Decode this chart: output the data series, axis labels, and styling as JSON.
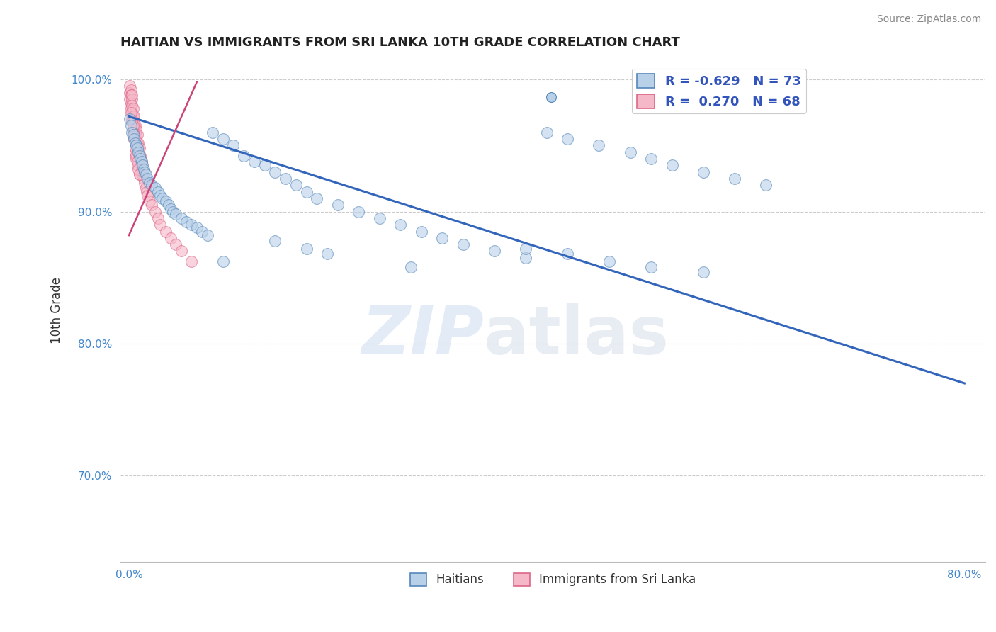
{
  "title": "HAITIAN VS IMMIGRANTS FROM SRI LANKA 10TH GRADE CORRELATION CHART",
  "source": "Source: ZipAtlas.com",
  "ylabel": "10th Grade",
  "watermark_zip": "ZIP",
  "watermark_atlas": "atlas",
  "xlim": [
    -0.008,
    0.82
  ],
  "ylim": [
    0.635,
    1.015
  ],
  "xticks": [
    0.0,
    0.1,
    0.2,
    0.3,
    0.4,
    0.5,
    0.6,
    0.7,
    0.8
  ],
  "yticks": [
    0.7,
    0.8,
    0.9,
    1.0
  ],
  "legend_blue_r": "-0.629",
  "legend_blue_n": "73",
  "legend_pink_r": "0.270",
  "legend_pink_n": "68",
  "legend_label_blue": "Haitians",
  "legend_label_pink": "Immigrants from Sri Lanka",
  "blue_face": "#b8d0e8",
  "blue_edge": "#5588bb",
  "pink_face": "#f5b8c8",
  "pink_edge": "#dd6688",
  "line_blue": "#3366bb",
  "line_pink": "#cc4477",
  "grid_color": "#cccccc",
  "bg": "#ffffff",
  "title_color": "#222222",
  "tick_color": "#4488cc",
  "blue_scatter_x": [
    0.001,
    0.002,
    0.003,
    0.004,
    0.005,
    0.006,
    0.007,
    0.008,
    0.009,
    0.01,
    0.011,
    0.012,
    0.013,
    0.014,
    0.015,
    0.016,
    0.018,
    0.02,
    0.022,
    0.025,
    0.028,
    0.03,
    0.032,
    0.035,
    0.038,
    0.04,
    0.042,
    0.045,
    0.05,
    0.055,
    0.06,
    0.065,
    0.07,
    0.075,
    0.08,
    0.09,
    0.1,
    0.11,
    0.12,
    0.13,
    0.14,
    0.15,
    0.16,
    0.17,
    0.18,
    0.2,
    0.22,
    0.24,
    0.26,
    0.28,
    0.3,
    0.32,
    0.35,
    0.38,
    0.4,
    0.42,
    0.45,
    0.48,
    0.5,
    0.52,
    0.55,
    0.58,
    0.61,
    0.14,
    0.17,
    0.19,
    0.09,
    0.27,
    0.38,
    0.42,
    0.46,
    0.5,
    0.55
  ],
  "blue_scatter_y": [
    0.97,
    0.965,
    0.96,
    0.958,
    0.955,
    0.952,
    0.95,
    0.948,
    0.945,
    0.942,
    0.94,
    0.938,
    0.935,
    0.932,
    0.93,
    0.928,
    0.925,
    0.922,
    0.92,
    0.918,
    0.915,
    0.912,
    0.91,
    0.908,
    0.905,
    0.902,
    0.9,
    0.898,
    0.895,
    0.892,
    0.89,
    0.888,
    0.885,
    0.882,
    0.96,
    0.955,
    0.95,
    0.942,
    0.938,
    0.935,
    0.93,
    0.925,
    0.92,
    0.915,
    0.91,
    0.905,
    0.9,
    0.895,
    0.89,
    0.885,
    0.88,
    0.875,
    0.87,
    0.865,
    0.96,
    0.955,
    0.95,
    0.945,
    0.94,
    0.935,
    0.93,
    0.925,
    0.92,
    0.878,
    0.872,
    0.868,
    0.862,
    0.858,
    0.872,
    0.868,
    0.862,
    0.858,
    0.854
  ],
  "pink_scatter_x": [
    0.001,
    0.001,
    0.001,
    0.002,
    0.002,
    0.002,
    0.002,
    0.003,
    0.003,
    0.003,
    0.003,
    0.004,
    0.004,
    0.004,
    0.004,
    0.005,
    0.005,
    0.005,
    0.005,
    0.006,
    0.006,
    0.006,
    0.007,
    0.007,
    0.007,
    0.008,
    0.008,
    0.008,
    0.009,
    0.009,
    0.01,
    0.01,
    0.011,
    0.011,
    0.012,
    0.012,
    0.013,
    0.014,
    0.015,
    0.016,
    0.017,
    0.018,
    0.02,
    0.022,
    0.025,
    0.028,
    0.03,
    0.035,
    0.04,
    0.045,
    0.05,
    0.06,
    0.002,
    0.003,
    0.004,
    0.005,
    0.006,
    0.007,
    0.008,
    0.01,
    0.003,
    0.004,
    0.005,
    0.006,
    0.007,
    0.008,
    0.009,
    0.01
  ],
  "pink_scatter_y": [
    0.995,
    0.99,
    0.985,
    0.992,
    0.988,
    0.982,
    0.978,
    0.985,
    0.98,
    0.975,
    0.97,
    0.978,
    0.972,
    0.968,
    0.964,
    0.972,
    0.968,
    0.962,
    0.958,
    0.965,
    0.96,
    0.955,
    0.962,
    0.958,
    0.952,
    0.958,
    0.952,
    0.948,
    0.952,
    0.948,
    0.948,
    0.942,
    0.942,
    0.938,
    0.938,
    0.932,
    0.928,
    0.925,
    0.922,
    0.918,
    0.915,
    0.912,
    0.908,
    0.905,
    0.9,
    0.895,
    0.89,
    0.885,
    0.88,
    0.875,
    0.87,
    0.862,
    0.975,
    0.968,
    0.96,
    0.955,
    0.945,
    0.94,
    0.935,
    0.928,
    0.988,
    0.965,
    0.958,
    0.948,
    0.942,
    0.938,
    0.932,
    0.928
  ],
  "blue_line_x": [
    0.0,
    0.8
  ],
  "blue_line_y": [
    0.972,
    0.77
  ],
  "pink_line_x": [
    0.0,
    0.065
  ],
  "pink_line_y": [
    0.882,
    0.998
  ]
}
